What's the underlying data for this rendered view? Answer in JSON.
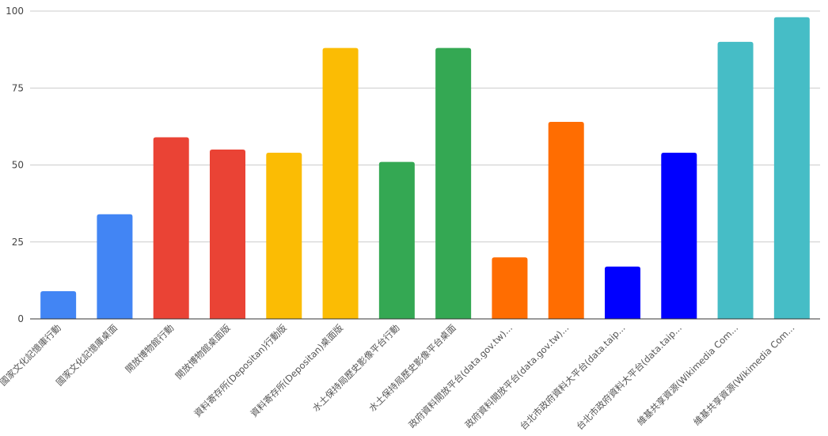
{
  "chart_data": {
    "type": "bar",
    "title": "",
    "xlabel": "",
    "ylabel": "",
    "ylim": [
      0,
      100
    ],
    "yticks": [
      0,
      25,
      50,
      75,
      100
    ],
    "grid": true,
    "legend": "none",
    "categories": [
      "國家文化記憶庫行動",
      "國家文化記憶庫桌面",
      "開放博物館行動",
      "開放博物館桌面版",
      "資料寄存所(Depositan)行動版",
      "資料寄存所(Depositan)桌面版",
      "水土保持局歷史影像平台行動",
      "水土保持局歷史影像平台桌面",
      "政府資料開放平台(data.gov.tw)...",
      "政府資料開放平台(data.gov.tw)...",
      "台北市政府資料大平台(data.taip...",
      "台北市政府資料大平台(data.taip...",
      "維基共享資源(Wikimedia Com...",
      "維基共享資源(Wikimedia Com..."
    ],
    "values": [
      9,
      34,
      59,
      55,
      54,
      88,
      51,
      88,
      20,
      64,
      17,
      54,
      90,
      98
    ],
    "colors": [
      "#4285f4",
      "#4285f4",
      "#ea4335",
      "#ea4335",
      "#fbbc04",
      "#fbbc04",
      "#34a853",
      "#34a853",
      "#ff6d01",
      "#ff6d01",
      "#0000ff",
      "#0000ff",
      "#46bdc6",
      "#46bdc6"
    ]
  }
}
